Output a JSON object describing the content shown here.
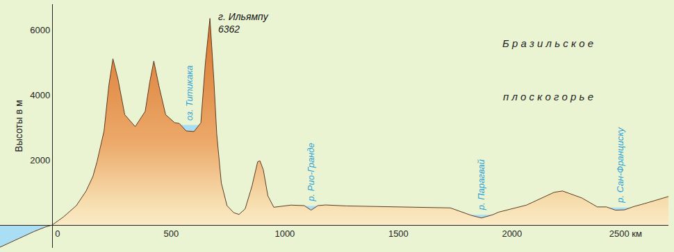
{
  "chart_data": {
    "type": "area",
    "y_label": "Высоты в м",
    "x": [
      -229,
      -150,
      -80,
      -30,
      0,
      50,
      107,
      150,
      180,
      198,
      229,
      250,
      268,
      290,
      320,
      366,
      410,
      430,
      448,
      470,
      500,
      540,
      560,
      590,
      625,
      655,
      675,
      695,
      712,
      725,
      745,
      770,
      800,
      823,
      850,
      880,
      905,
      915,
      930,
      950,
      976,
      1052,
      1110,
      1140,
      1170,
      1204,
      1296,
      1448,
      1600,
      1753,
      1845,
      1890,
      1940,
      1966,
      2088,
      2210,
      2247,
      2332,
      2400,
      2440,
      2480,
      2520,
      2560,
      2607,
      2713
    ],
    "values": [
      -680,
      -420,
      -200,
      -60,
      0,
      250,
      600,
      1050,
      1500,
      1950,
      2900,
      4300,
      5120,
      4500,
      3400,
      3030,
      3500,
      4400,
      5050,
      4300,
      3400,
      3150,
      3130,
      2900,
      2880,
      3150,
      5000,
      6362,
      4500,
      2800,
      1300,
      600,
      380,
      330,
      500,
      1200,
      1950,
      1980,
      1700,
      900,
      550,
      615,
      600,
      460,
      600,
      620,
      590,
      570,
      560,
      530,
      300,
      220,
      320,
      400,
      615,
      1010,
      1050,
      835,
      560,
      560,
      460,
      470,
      570,
      660,
      880
    ],
    "xlim": [
      -229,
      2713
    ],
    "ylim": [
      -700,
      6800
    ],
    "xticks": [
      0,
      500,
      1000,
      1500,
      2000,
      {
        "value": 2500,
        "label": "2500 км"
      }
    ],
    "yticks": [
      2000,
      4000,
      6000
    ],
    "grid": false,
    "peak": {
      "label": "г. Ильямпу",
      "x": 695,
      "value": 6362
    },
    "water": [
      {
        "label": "оз. Титикака",
        "x": [
          560,
          650
        ],
        "level": 3080
      },
      {
        "label": "р. Рио-Гранде",
        "x": [
          1110,
          1170
        ],
        "level": 590
      },
      {
        "label": "р. Парагвай",
        "x": [
          1830,
          1945
        ],
        "level": 320
      },
      {
        "label": "р. Сан-Франциску",
        "x": [
          2440,
          2560
        ],
        "level": 540
      }
    ],
    "region_label": [
      "Б р а з и л ь с к о е",
      "п л о с к о г о р ь е"
    ]
  }
}
